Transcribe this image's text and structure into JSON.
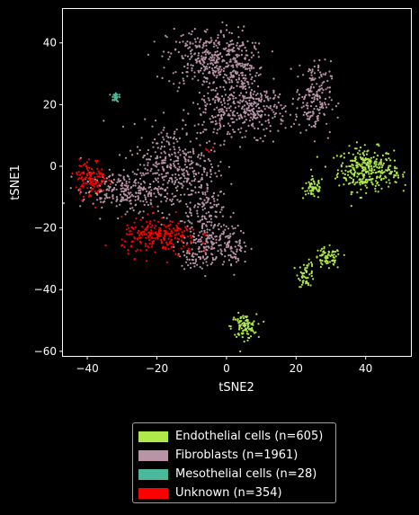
{
  "chart_data": {
    "type": "scatter",
    "xlabel": "tSNE2",
    "ylabel": "tSNE1",
    "xlim": [
      -47,
      53
    ],
    "ylim": [
      -61.5,
      51
    ],
    "xticks": [
      -40,
      -20,
      0,
      20,
      40
    ],
    "yticks": [
      -60,
      -40,
      -20,
      0,
      20,
      40
    ],
    "xtick_labels": [
      "−40",
      "−20",
      "0",
      "20",
      "40"
    ],
    "ytick_labels": [
      "−60",
      "−40",
      "−20",
      "0",
      "20",
      "40"
    ],
    "background": "#000000",
    "legend_position": "below",
    "series": [
      {
        "name": "Endothelial cells (n=605)",
        "color": "#aee84a",
        "clusters": [
          {
            "cx": 40,
            "cy": -1,
            "sx": 4.0,
            "sy": 3.5,
            "n": 300
          },
          {
            "cx": 48,
            "cy": -3,
            "sx": 1.5,
            "sy": 1.2,
            "n": 25
          },
          {
            "cx": 25,
            "cy": -7,
            "sx": 1.5,
            "sy": 1.8,
            "n": 60
          },
          {
            "cx": 29,
            "cy": -30,
            "sx": 2.0,
            "sy": 1.8,
            "n": 70
          },
          {
            "cx": 23,
            "cy": -35,
            "sx": 1.2,
            "sy": 2.0,
            "n": 50
          },
          {
            "cx": 5,
            "cy": -52,
            "sx": 1.8,
            "sy": 2.0,
            "n": 100
          }
        ]
      },
      {
        "name": "Fibroblasts (n=1961)",
        "color": "#b994a6",
        "clusters": [
          {
            "cx": -5,
            "cy": 35,
            "sx": 6.0,
            "sy": 5.0,
            "n": 320
          },
          {
            "cx": 4,
            "cy": 30,
            "sx": 3.5,
            "sy": 6.0,
            "n": 150
          },
          {
            "cx": 9,
            "cy": 18,
            "sx": 4.0,
            "sy": 4.0,
            "n": 200
          },
          {
            "cx": -2,
            "cy": 18,
            "sx": 4.0,
            "sy": 5.0,
            "n": 150
          },
          {
            "cx": 25,
            "cy": 22,
            "sx": 2.5,
            "sy": 6.0,
            "n": 180
          },
          {
            "cx": -15,
            "cy": 0,
            "sx": 6.0,
            "sy": 7.0,
            "n": 360
          },
          {
            "cx": -30,
            "cy": -8,
            "sx": 6.0,
            "sy": 3.0,
            "n": 230
          },
          {
            "cx": -6,
            "cy": -17,
            "sx": 3.0,
            "sy": 7.0,
            "n": 200
          },
          {
            "cx": 2,
            "cy": -26,
            "sx": 2.0,
            "sy": 3.0,
            "n": 80
          },
          {
            "cx": -8,
            "cy": -28,
            "sx": 3.0,
            "sy": 2.5,
            "n": 91
          }
        ]
      },
      {
        "name": "Mesothelial cells (n=28)",
        "color": "#4ab89a",
        "clusters": [
          {
            "cx": -32,
            "cy": 22.5,
            "sx": 0.5,
            "sy": 0.8,
            "n": 28
          }
        ]
      },
      {
        "name": "Unknown (n=354)",
        "color": "#ff0000",
        "clusters": [
          {
            "cx": -39,
            "cy": -4,
            "sx": 2.2,
            "sy": 3.0,
            "n": 120
          },
          {
            "cx": -19,
            "cy": -23,
            "sx": 5.5,
            "sy": 3.0,
            "n": 230
          },
          {
            "cx": -5,
            "cy": 5,
            "sx": 1.0,
            "sy": 1.0,
            "n": 4
          }
        ]
      }
    ]
  }
}
